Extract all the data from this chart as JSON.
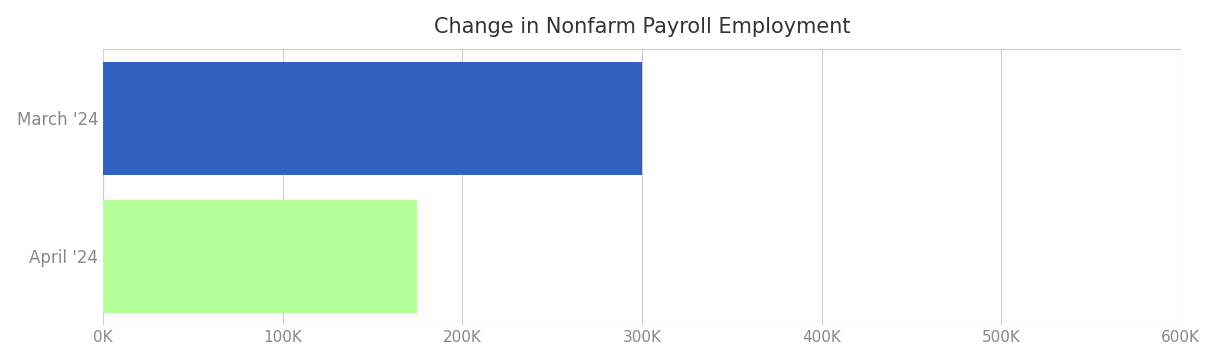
{
  "title": "Change in Nonfarm Payroll Employment",
  "title_color": "#333333",
  "categories": [
    "April '24",
    "March '24"
  ],
  "values": [
    175000,
    300000
  ],
  "bar_colors": [
    "#b3ff99",
    "#3060c0"
  ],
  "xlim": [
    0,
    600000
  ],
  "xticks": [
    0,
    100000,
    200000,
    300000,
    400000,
    500000,
    600000
  ],
  "xtick_labels": [
    "0K",
    "100K",
    "200K",
    "300K",
    "400K",
    "500K",
    "600K"
  ],
  "ytick_color": "#888888",
  "xtick_color": "#888888",
  "grid_color": "#cccccc",
  "background_color": "#ffffff",
  "title_fontsize": 15,
  "tick_fontsize": 11,
  "label_fontsize": 12,
  "bar_height": 0.82
}
